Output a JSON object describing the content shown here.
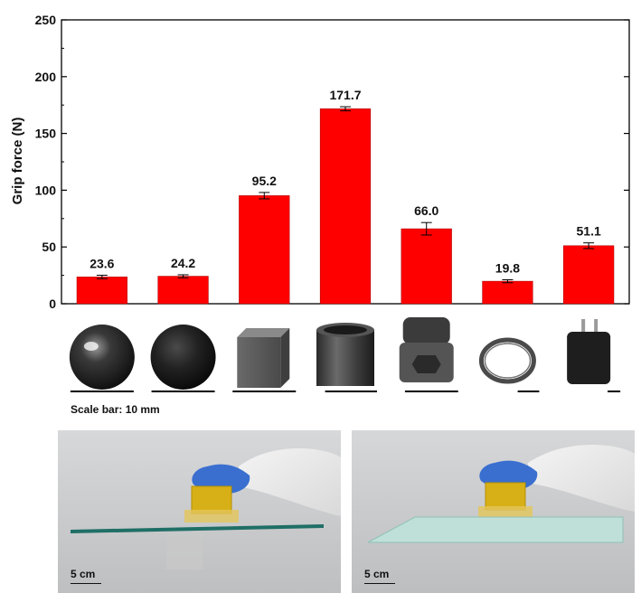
{
  "chart_data": {
    "type": "bar",
    "ylabel": "Grip force (N)",
    "ylim": [
      0,
      250
    ],
    "yticks": [
      0,
      50,
      100,
      150,
      200,
      250
    ],
    "grid": false,
    "bar_color": "#ff0000",
    "values": [
      23.6,
      24.2,
      95.2,
      171.7,
      66.0,
      19.8,
      51.1
    ],
    "errors": [
      1.5,
      1.3,
      2.8,
      1.8,
      5.5,
      1.3,
      2.5
    ],
    "data_labels": [
      "23.6",
      "24.2",
      "95.2",
      "171.7",
      "66.0",
      "19.8",
      "51.1"
    ],
    "categories": [
      "glossy-sphere",
      "matte-sphere",
      "cube",
      "cylinder",
      "bolt",
      "key-ring",
      "power-adapter"
    ]
  },
  "objects": {
    "scale_bar_fraction": [
      1.0,
      1.0,
      1.0,
      0.82,
      0.84,
      0.34,
      0.2
    ]
  },
  "scale_caption": "Scale bar: 10 mm",
  "photos": [
    {
      "scale_label": "5 cm"
    },
    {
      "scale_label": "5 cm"
    }
  ]
}
